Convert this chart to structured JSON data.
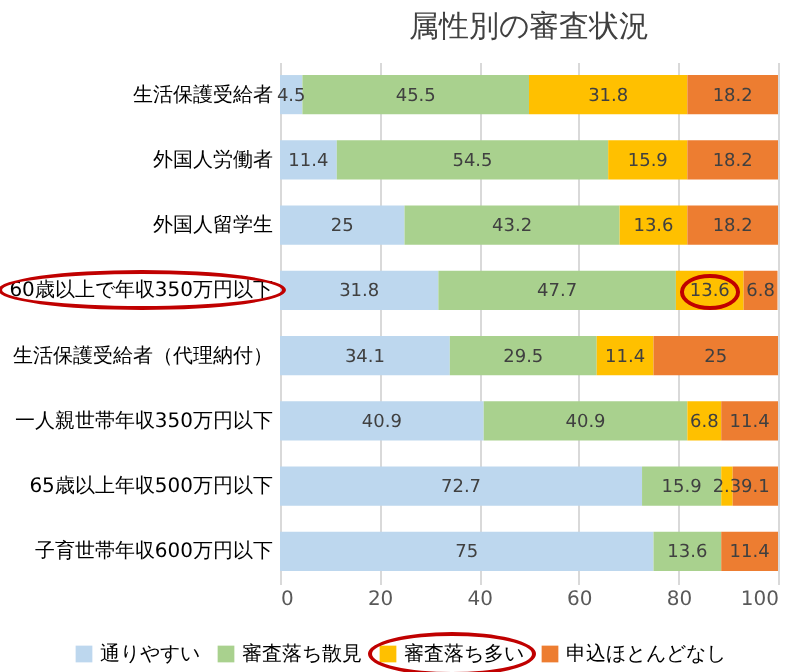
{
  "chart_data": {
    "type": "bar",
    "orientation": "horizontal",
    "stacked": true,
    "title": "属性別の審査状況",
    "categories": [
      "生活保護受給者",
      "外国人労働者",
      "外国人留学生",
      "60歳以上で年収350万円以下",
      "生活保護受給者（代理納付）",
      "一人親世帯年収350万円以下",
      "65歳以上年収500万円以下",
      "子育世帯年収600万円以下"
    ],
    "series": [
      {
        "name": "通りやすい",
        "color": "#bdd7ee",
        "values": [
          4.5,
          11.4,
          25,
          31.8,
          34.1,
          40.9,
          72.7,
          75
        ]
      },
      {
        "name": "審査落ち散見",
        "color": "#a9d18e",
        "values": [
          45.5,
          54.5,
          43.2,
          47.7,
          29.5,
          40.9,
          15.9,
          13.6
        ]
      },
      {
        "name": "審査落ち多い",
        "color": "#ffc000",
        "values": [
          31.8,
          15.9,
          13.6,
          13.6,
          11.4,
          6.8,
          2.3,
          null
        ]
      },
      {
        "name": "申込ほとんどなし",
        "color": "#ed7d31",
        "values": [
          18.2,
          18.2,
          18.2,
          6.8,
          25,
          11.4,
          9.1,
          11.4
        ]
      }
    ],
    "xlim": [
      0,
      100
    ],
    "xticks": [
      0,
      20,
      40,
      60,
      80,
      100
    ],
    "grid": "x",
    "legend": "bottom",
    "data_labels": true
  }
}
